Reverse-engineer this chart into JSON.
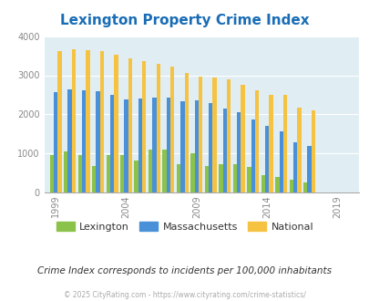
{
  "title": "Lexington Property Crime Index",
  "title_color": "#1a6db5",
  "subtitle": "Crime Index corresponds to incidents per 100,000 inhabitants",
  "footer": "© 2025 CityRating.com - https://www.cityrating.com/crime-statistics/",
  "years": [
    1999,
    2000,
    2001,
    2002,
    2003,
    2004,
    2005,
    2006,
    2007,
    2008,
    2009,
    2010,
    2011,
    2012,
    2013,
    2014,
    2015,
    2016,
    2017,
    2018,
    2019,
    2020
  ],
  "lexington": [
    950,
    1050,
    950,
    670,
    950,
    950,
    820,
    1100,
    1090,
    730,
    1010,
    680,
    730,
    730,
    660,
    440,
    400,
    340,
    260,
    0,
    0,
    0
  ],
  "massachusetts": [
    2570,
    2640,
    2610,
    2590,
    2490,
    2380,
    2410,
    2420,
    2420,
    2330,
    2360,
    2280,
    2155,
    2065,
    1870,
    1700,
    1565,
    1285,
    1195,
    0,
    0,
    0
  ],
  "national": [
    3620,
    3670,
    3640,
    3610,
    3520,
    3440,
    3355,
    3300,
    3230,
    3050,
    2960,
    2940,
    2900,
    2760,
    2610,
    2510,
    2500,
    2170,
    2105,
    0,
    0,
    0
  ],
  "lexington_color": "#8bc34a",
  "massachusetts_color": "#4a90d9",
  "national_color": "#f5c242",
  "background_color": "#e0eef4",
  "ylim": [
    0,
    4000
  ],
  "yticks": [
    0,
    1000,
    2000,
    3000,
    4000
  ],
  "xtick_years": [
    1999,
    2004,
    2009,
    2014,
    2019
  ],
  "bar_width": 0.28,
  "figsize": [
    4.06,
    3.3
  ],
  "dpi": 100
}
